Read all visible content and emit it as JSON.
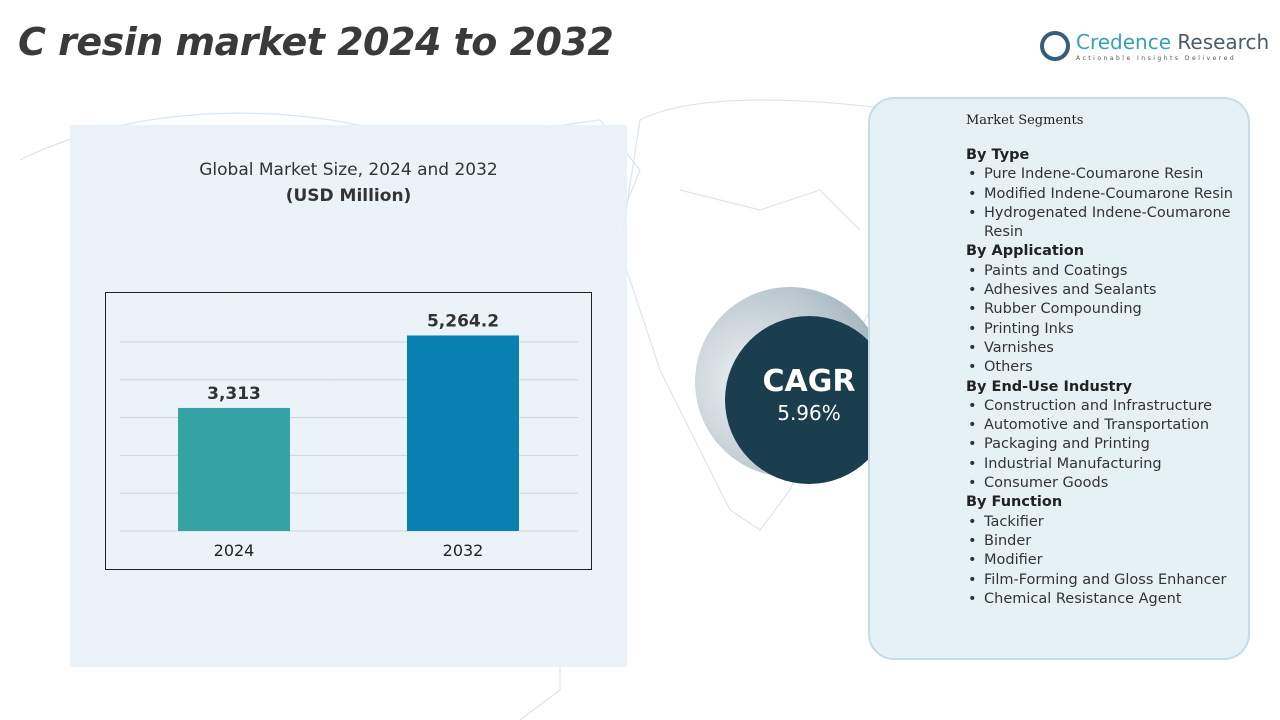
{
  "title": "C resin market 2024 to 2032",
  "logo": {
    "name_a": "Credence",
    "name_b": "Research",
    "tagline": "Actionable Insights Delivered"
  },
  "chart_data": {
    "type": "bar",
    "title": "Global Market Size, 2024 and 2032",
    "subtitle": "(USD Million)",
    "categories": [
      "2024",
      "2032"
    ],
    "values": [
      3313,
      5264.2
    ],
    "value_labels": [
      "3,313",
      "5,264.2"
    ],
    "colors": [
      "#35a3a3",
      "#0780b2"
    ],
    "ylim": [
      0,
      5600
    ],
    "grid": true
  },
  "cagr": {
    "label": "CAGR",
    "value": "5.96%"
  },
  "segments": {
    "title": "Market Segments",
    "groups": [
      {
        "heading": "By Type",
        "items": [
          "Pure Indene-Coumarone Resin",
          "Modified Indene-Coumarone Resin",
          "Hydrogenated Indene-Coumarone Resin"
        ]
      },
      {
        "heading": "By Application",
        "items": [
          "Paints and Coatings",
          "Adhesives and Sealants",
          "Rubber Compounding",
          "Printing Inks",
          "Varnishes",
          "Others"
        ]
      },
      {
        "heading": "By End-Use Industry",
        "items": [
          "Construction and Infrastructure",
          "Automotive and Transportation",
          "Packaging and Printing",
          "Industrial Manufacturing",
          "Consumer Goods"
        ]
      },
      {
        "heading": "By Function",
        "items": [
          "Tackifier",
          "Binder",
          "Modifier",
          "Film-Forming and Gloss Enhancer",
          "Chemical Resistance Agent"
        ]
      }
    ]
  }
}
